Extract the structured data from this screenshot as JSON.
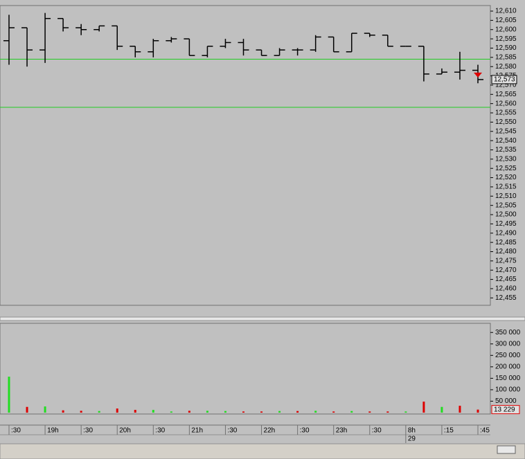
{
  "chart_data": [
    {
      "type": "ohlc",
      "categories": [
        ":30",
        null,
        "19h",
        null,
        ":30",
        null,
        "20h",
        null,
        ":30",
        null,
        "21h",
        null,
        ":30",
        null,
        "22h",
        null,
        ":30",
        null,
        "23h",
        null,
        ":30",
        null,
        "8h",
        null,
        ":15",
        null,
        ":45"
      ],
      "subcategories": [
        null,
        null,
        null,
        null,
        null,
        null,
        null,
        null,
        null,
        null,
        null,
        null,
        null,
        null,
        null,
        null,
        null,
        null,
        null,
        null,
        null,
        null,
        "29",
        null,
        null,
        null,
        null
      ],
      "open": [
        12.594,
        12.601,
        12.589,
        12.606,
        12.601,
        12.6,
        12.602,
        12.591,
        12.588,
        12.594,
        12.595,
        12.586,
        12.591,
        12.593,
        12.589,
        12.586,
        12.589,
        12.589,
        12.596,
        12.588,
        12.598,
        12.597,
        12.591,
        12.591,
        12.576,
        12.577,
        12.578
      ],
      "high": [
        12.608,
        12.601,
        12.609,
        12.606,
        12.603,
        12.602,
        12.602,
        12.591,
        12.595,
        12.596,
        12.595,
        12.591,
        12.595,
        12.595,
        12.589,
        12.59,
        12.59,
        12.597,
        12.596,
        12.598,
        12.598,
        12.597,
        12.591,
        12.591,
        12.579,
        12.588,
        12.581
      ],
      "low": [
        12.581,
        12.58,
        12.582,
        12.599,
        12.597,
        12.599,
        12.589,
        12.585,
        12.585,
        12.593,
        12.586,
        12.585,
        12.59,
        12.586,
        12.586,
        12.586,
        12.586,
        12.588,
        12.588,
        12.588,
        12.596,
        12.591,
        12.591,
        12.572,
        12.576,
        12.573,
        12.571
      ],
      "close": [
        12.601,
        12.589,
        12.606,
        12.601,
        12.6,
        12.602,
        12.591,
        12.588,
        12.594,
        12.595,
        12.586,
        12.591,
        12.593,
        12.589,
        12.586,
        12.589,
        12.589,
        12.596,
        12.588,
        12.598,
        12.597,
        12.591,
        12.591,
        12.576,
        12.577,
        12.578,
        12.573
      ],
      "color": "#000000",
      "hlines": [
        12.584,
        12.558
      ],
      "hline_color": "#22cc22",
      "last": {
        "value": 12.573,
        "label": "12,573"
      },
      "last_color": "#dd0000",
      "ylim": [
        12.451,
        12.613
      ],
      "yticks": [
        {
          "value": 12.61,
          "label": "12,610"
        },
        {
          "value": 12.605,
          "label": "12,605"
        },
        {
          "value": 12.6,
          "label": "12,600"
        },
        {
          "value": 12.595,
          "label": "12,595"
        },
        {
          "value": 12.59,
          "label": "12,590"
        },
        {
          "value": 12.585,
          "label": "12,585"
        },
        {
          "value": 12.58,
          "label": "12,580"
        },
        {
          "value": 12.575,
          "label": "12,575"
        },
        {
          "value": 12.57,
          "label": "12,570"
        },
        {
          "value": 12.565,
          "label": "12,565"
        },
        {
          "value": 12.56,
          "label": "12,560"
        },
        {
          "value": 12.555,
          "label": "12,555"
        },
        {
          "value": 12.55,
          "label": "12,550"
        },
        {
          "value": 12.545,
          "label": "12,545"
        },
        {
          "value": 12.54,
          "label": "12,540"
        },
        {
          "value": 12.535,
          "label": "12,535"
        },
        {
          "value": 12.53,
          "label": "12,530"
        },
        {
          "value": 12.525,
          "label": "12,525"
        },
        {
          "value": 12.52,
          "label": "12,520"
        },
        {
          "value": 12.515,
          "label": "12,515"
        },
        {
          "value": 12.51,
          "label": "12,510"
        },
        {
          "value": 12.505,
          "label": "12,505"
        },
        {
          "value": 12.5,
          "label": "12,500"
        },
        {
          "value": 12.495,
          "label": "12,495"
        },
        {
          "value": 12.49,
          "label": "12,490"
        },
        {
          "value": 12.485,
          "label": "12,485"
        },
        {
          "value": 12.48,
          "label": "12,480"
        },
        {
          "value": 12.475,
          "label": "12,475"
        },
        {
          "value": 12.47,
          "label": "12,470"
        },
        {
          "value": 12.465,
          "label": "12,465"
        },
        {
          "value": 12.46,
          "label": "12,460"
        },
        {
          "value": 12.455,
          "label": "12,455"
        }
      ]
    },
    {
      "type": "volume",
      "values": [
        157000,
        25000,
        27000,
        10000,
        8000,
        7000,
        18000,
        12000,
        12000,
        5000,
        8000,
        8000,
        7000,
        5000,
        5000,
        7000,
        7000,
        8000,
        5000,
        7000,
        5000,
        5000,
        5000,
        48000,
        25000,
        30000,
        13229
      ],
      "colors": [
        "#22dd22",
        "#dd0000",
        "#22dd22",
        "#dd0000",
        "#dd0000",
        "#22dd22",
        "#dd0000",
        "#dd0000",
        "#22dd22",
        "#22dd22",
        "#dd0000",
        "#22dd22",
        "#22dd22",
        "#dd0000",
        "#dd0000",
        "#22dd22",
        "#dd0000",
        "#22dd22",
        "#dd0000",
        "#22dd22",
        "#dd0000",
        "#dd0000",
        "#22dd22",
        "#dd0000",
        "#22dd22",
        "#dd0000",
        "#dd0000"
      ],
      "last": {
        "value": 13229,
        "label": "13 229"
      },
      "last_color": "#dd0000",
      "ylim": [
        -6000,
        390000
      ],
      "yticks": [
        {
          "value": 350000,
          "label": "350 000"
        },
        {
          "value": 300000,
          "label": "300 000"
        },
        {
          "value": 250000,
          "label": "250 000"
        },
        {
          "value": 200000,
          "label": "200 000"
        },
        {
          "value": 150000,
          "label": "150 000"
        },
        {
          "value": 100000,
          "label": "100 000"
        },
        {
          "value": 50000,
          "label": "50 000"
        }
      ]
    }
  ]
}
